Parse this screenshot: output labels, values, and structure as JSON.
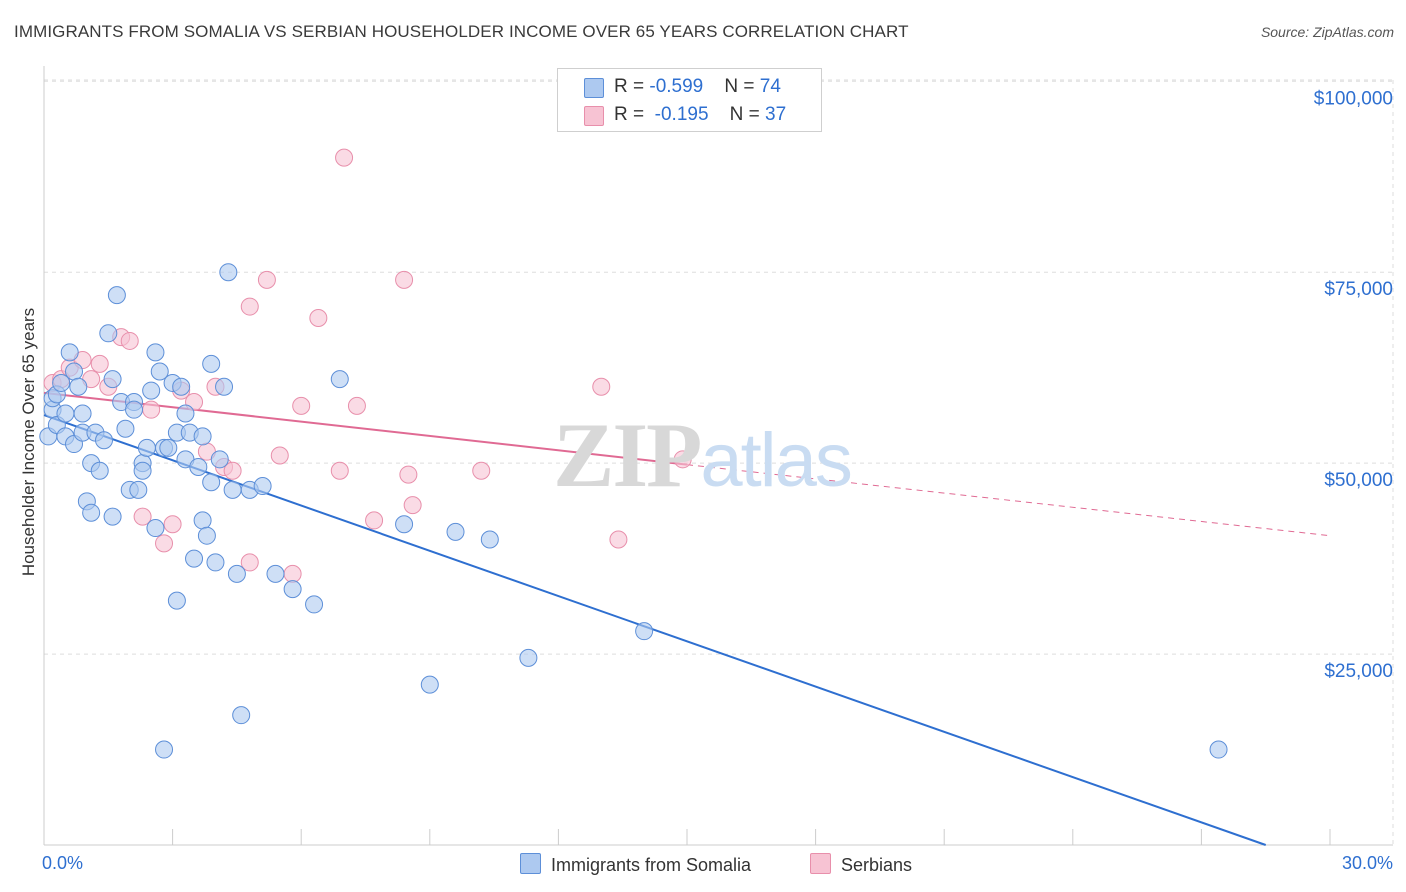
{
  "header": {
    "title": "IMMIGRANTS FROM SOMALIA VS SERBIAN HOUSEHOLDER INCOME OVER 65 YEARS CORRELATION CHART",
    "source": "Source: ZipAtlas.com"
  },
  "legend": {
    "somalia": {
      "r_label": "R = ",
      "r_value": "-0.599",
      "n_label": "N = ",
      "n_value": "74"
    },
    "serbians": {
      "r_label": "R = ",
      "r_value": "-0.195",
      "n_label": "N = ",
      "n_value": "37"
    }
  },
  "bottom_legend": {
    "somalia": "Immigrants from Somalia",
    "serbians": "Serbians"
  },
  "watermark": {
    "zip": "ZIP",
    "atlas": "atlas"
  },
  "colors": {
    "somalia_fill": "#adc9f0",
    "somalia_stroke": "#5d8fd8",
    "somalia_line": "#2e6fd0",
    "serbians_fill": "#f7c3d3",
    "serbians_stroke": "#e88fab",
    "serbians_line": "#e06a93",
    "grid": "#dddddd",
    "axis_label": "#2e6fd0"
  },
  "chart_data": {
    "type": "scatter",
    "title": "IMMIGRANTS FROM SOMALIA VS SERBIAN HOUSEHOLDER INCOME OVER 65 YEARS CORRELATION CHART",
    "xlabel": "",
    "ylabel": "Householder Income Over 65 years",
    "xlim": [
      0,
      30
    ],
    "ylim": [
      0,
      102000
    ],
    "x_tick_labels": [
      "0.0%",
      "30.0%"
    ],
    "y_ticks": [
      25000,
      50000,
      75000,
      100000
    ],
    "y_tick_labels": [
      "$25,000",
      "$50,000",
      "$75,000",
      "$100,000"
    ],
    "grid": true,
    "series": [
      {
        "name": "Immigrants from Somalia",
        "trend": {
          "x": [
            0,
            28.5
          ],
          "y": [
            56300,
            0
          ]
        },
        "points": [
          [
            0.1,
            53500
          ],
          [
            0.2,
            57000
          ],
          [
            0.2,
            58500
          ],
          [
            0.3,
            59000
          ],
          [
            0.3,
            55000
          ],
          [
            0.4,
            60500
          ],
          [
            0.5,
            56500
          ],
          [
            0.5,
            53500
          ],
          [
            0.6,
            64500
          ],
          [
            0.7,
            62000
          ],
          [
            0.7,
            52500
          ],
          [
            0.8,
            60000
          ],
          [
            0.9,
            54000
          ],
          [
            0.9,
            56500
          ],
          [
            1.0,
            45000
          ],
          [
            1.1,
            50000
          ],
          [
            1.1,
            43500
          ],
          [
            1.2,
            54000
          ],
          [
            1.3,
            49000
          ],
          [
            1.4,
            53000
          ],
          [
            1.5,
            67000
          ],
          [
            1.6,
            61000
          ],
          [
            1.6,
            43000
          ],
          [
            1.7,
            72000
          ],
          [
            1.8,
            58000
          ],
          [
            1.9,
            54500
          ],
          [
            2.0,
            46500
          ],
          [
            2.1,
            58000
          ],
          [
            2.1,
            57000
          ],
          [
            2.2,
            46500
          ],
          [
            2.3,
            50000
          ],
          [
            2.3,
            49000
          ],
          [
            2.4,
            52000
          ],
          [
            2.5,
            59500
          ],
          [
            2.6,
            64500
          ],
          [
            2.6,
            41500
          ],
          [
            2.7,
            62000
          ],
          [
            2.8,
            52000
          ],
          [
            2.9,
            52000
          ],
          [
            3.0,
            60500
          ],
          [
            3.1,
            54000
          ],
          [
            3.1,
            32000
          ],
          [
            3.2,
            60000
          ],
          [
            3.3,
            50500
          ],
          [
            3.3,
            56500
          ],
          [
            3.4,
            54000
          ],
          [
            3.5,
            37500
          ],
          [
            3.6,
            49500
          ],
          [
            3.7,
            42500
          ],
          [
            3.7,
            53500
          ],
          [
            3.8,
            40500
          ],
          [
            3.9,
            47500
          ],
          [
            3.9,
            63000
          ],
          [
            4.0,
            37000
          ],
          [
            4.1,
            50500
          ],
          [
            4.2,
            60000
          ],
          [
            4.3,
            75000
          ],
          [
            4.4,
            46500
          ],
          [
            4.5,
            35500
          ],
          [
            4.6,
            17000
          ],
          [
            4.8,
            46500
          ],
          [
            5.1,
            47000
          ],
          [
            5.4,
            35500
          ],
          [
            5.8,
            33500
          ],
          [
            6.3,
            31500
          ],
          [
            6.9,
            61000
          ],
          [
            8.4,
            42000
          ],
          [
            9.0,
            21000
          ],
          [
            9.6,
            41000
          ],
          [
            10.4,
            40000
          ],
          [
            11.3,
            24500
          ],
          [
            14.0,
            28000
          ],
          [
            27.4,
            12500
          ],
          [
            2.8,
            12500
          ]
        ]
      },
      {
        "name": "Serbians",
        "trend": {
          "x": [
            0,
            15
          ],
          "y": [
            59200,
            49800
          ]
        },
        "trend_ext": {
          "x": [
            15,
            30
          ],
          "y": [
            49800,
            40500
          ]
        },
        "points": [
          [
            0.2,
            60500
          ],
          [
            0.4,
            61000
          ],
          [
            0.6,
            62500
          ],
          [
            0.9,
            63500
          ],
          [
            1.1,
            61000
          ],
          [
            1.3,
            63000
          ],
          [
            1.5,
            60000
          ],
          [
            1.8,
            66500
          ],
          [
            2.0,
            66000
          ],
          [
            2.3,
            43000
          ],
          [
            2.5,
            57000
          ],
          [
            2.8,
            39500
          ],
          [
            3.0,
            42000
          ],
          [
            3.2,
            59500
          ],
          [
            3.5,
            58000
          ],
          [
            3.8,
            51500
          ],
          [
            4.0,
            60000
          ],
          [
            4.2,
            49500
          ],
          [
            4.4,
            49000
          ],
          [
            4.8,
            37000
          ],
          [
            4.8,
            70500
          ],
          [
            5.2,
            74000
          ],
          [
            5.5,
            51000
          ],
          [
            5.8,
            35500
          ],
          [
            6.0,
            57500
          ],
          [
            6.4,
            69000
          ],
          [
            6.9,
            49000
          ],
          [
            7.0,
            90000
          ],
          [
            7.3,
            57500
          ],
          [
            7.7,
            42500
          ],
          [
            8.4,
            74000
          ],
          [
            8.5,
            48500
          ],
          [
            8.6,
            44500
          ],
          [
            10.2,
            49000
          ],
          [
            13.0,
            60000
          ],
          [
            13.4,
            40000
          ],
          [
            14.9,
            50500
          ]
        ]
      }
    ]
  }
}
